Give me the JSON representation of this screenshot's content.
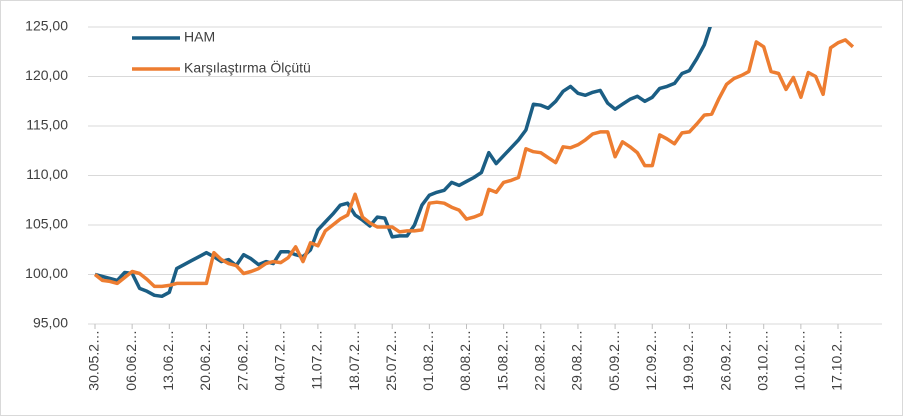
{
  "chart_data": {
    "type": "line",
    "categories": [
      "30.05.2…",
      null,
      null,
      null,
      null,
      "06.06.2…",
      null,
      null,
      null,
      null,
      "13.06.2…",
      null,
      null,
      null,
      null,
      "20.06.2…",
      null,
      null,
      null,
      null,
      "27.06.2…",
      null,
      null,
      null,
      null,
      "04.07.2…",
      null,
      null,
      null,
      null,
      "11.07.2…",
      null,
      null,
      null,
      null,
      "18.07.2…",
      null,
      null,
      null,
      null,
      "25.07.2…",
      null,
      null,
      null,
      null,
      "01.08.2…",
      null,
      null,
      null,
      null,
      "08.08.2…",
      null,
      null,
      null,
      null,
      "15.08.2…",
      null,
      null,
      null,
      null,
      "22.08.2…",
      null,
      null,
      null,
      null,
      "29.08.2…",
      null,
      null,
      null,
      null,
      "05.09.2…",
      null,
      null,
      null,
      null,
      "12.09.2…",
      null,
      null,
      null,
      null,
      "19.09.2…",
      null,
      null,
      null,
      null,
      "26.09.2…",
      null,
      null,
      null,
      null,
      "03.10.2…",
      null,
      null,
      null,
      null,
      "10.10.2…",
      null,
      null,
      null,
      null,
      "17.10.2…",
      null,
      null
    ],
    "series": [
      {
        "name": "HAM",
        "color": "#1b5e84",
        "values": [
          100.0,
          99.8,
          99.6,
          99.4,
          100.2,
          100.1,
          98.6,
          98.3,
          97.9,
          97.8,
          98.2,
          100.6,
          101.0,
          101.4,
          101.8,
          102.2,
          101.8,
          101.3,
          101.5,
          100.9,
          102.0,
          101.6,
          101.0,
          101.3,
          101.1,
          102.3,
          102.3,
          102.0,
          101.8,
          102.5,
          104.5,
          105.3,
          106.1,
          107.0,
          107.2,
          106.0,
          105.5,
          104.9,
          105.8,
          105.7,
          103.8,
          103.9,
          103.9,
          105.0,
          107.0,
          108.0,
          108.3,
          108.5,
          109.3,
          109.0,
          109.4,
          109.8,
          110.3,
          112.3,
          111.2,
          112.0,
          112.8,
          113.6,
          114.6,
          117.2,
          117.1,
          116.8,
          117.5,
          118.5,
          119.0,
          118.3,
          118.1,
          118.4,
          118.6,
          117.3,
          116.7,
          117.2,
          117.7,
          118.0,
          117.5,
          117.9,
          118.8,
          119.0,
          119.3,
          120.3,
          120.6,
          121.8,
          123.2,
          125.5,
          null,
          null,
          null,
          null,
          null,
          null,
          null,
          null,
          null,
          null,
          null,
          null,
          null,
          null,
          null,
          null,
          null,
          null,
          null
        ]
      },
      {
        "name": "Karşılaştırma Ölçütü",
        "color": "#ed7d31",
        "values": [
          100.0,
          99.4,
          99.3,
          99.1,
          99.7,
          100.3,
          100.1,
          99.5,
          98.8,
          98.8,
          98.9,
          99.1,
          99.1,
          99.1,
          99.1,
          99.1,
          102.2,
          101.5,
          101.1,
          100.9,
          100.1,
          100.3,
          100.6,
          101.1,
          101.3,
          101.2,
          101.7,
          102.8,
          101.3,
          103.2,
          102.9,
          104.4,
          105.0,
          105.6,
          106.0,
          108.1,
          105.8,
          105.2,
          104.8,
          104.8,
          104.8,
          104.3,
          104.4,
          104.4,
          104.5,
          107.2,
          107.3,
          107.2,
          106.8,
          106.5,
          105.6,
          105.8,
          106.1,
          108.6,
          108.3,
          109.3,
          109.5,
          109.8,
          112.7,
          112.4,
          112.3,
          111.8,
          111.3,
          112.9,
          112.8,
          113.1,
          113.6,
          114.2,
          114.4,
          114.4,
          111.9,
          113.4,
          112.9,
          112.3,
          111.0,
          111.0,
          114.1,
          113.7,
          113.2,
          114.3,
          114.4,
          115.2,
          116.1,
          116.2,
          117.8,
          119.2,
          119.8,
          120.1,
          120.5,
          123.5,
          123.0,
          120.5,
          120.3,
          118.7,
          119.9,
          117.9,
          120.4,
          120.0,
          118.2,
          122.9,
          123.4,
          123.7,
          123.0
        ]
      }
    ],
    "ylim": [
      95,
      125
    ],
    "yticks": [
      {
        "value": 95,
        "label": "95,00"
      },
      {
        "value": 100,
        "label": "100,00"
      },
      {
        "value": 105,
        "label": "105,00"
      },
      {
        "value": 110,
        "label": "110,00"
      },
      {
        "value": 115,
        "label": "115,00"
      },
      {
        "value": 120,
        "label": "120,00"
      },
      {
        "value": 125,
        "label": "125,00"
      }
    ],
    "grid": true,
    "legend": "top-left"
  }
}
